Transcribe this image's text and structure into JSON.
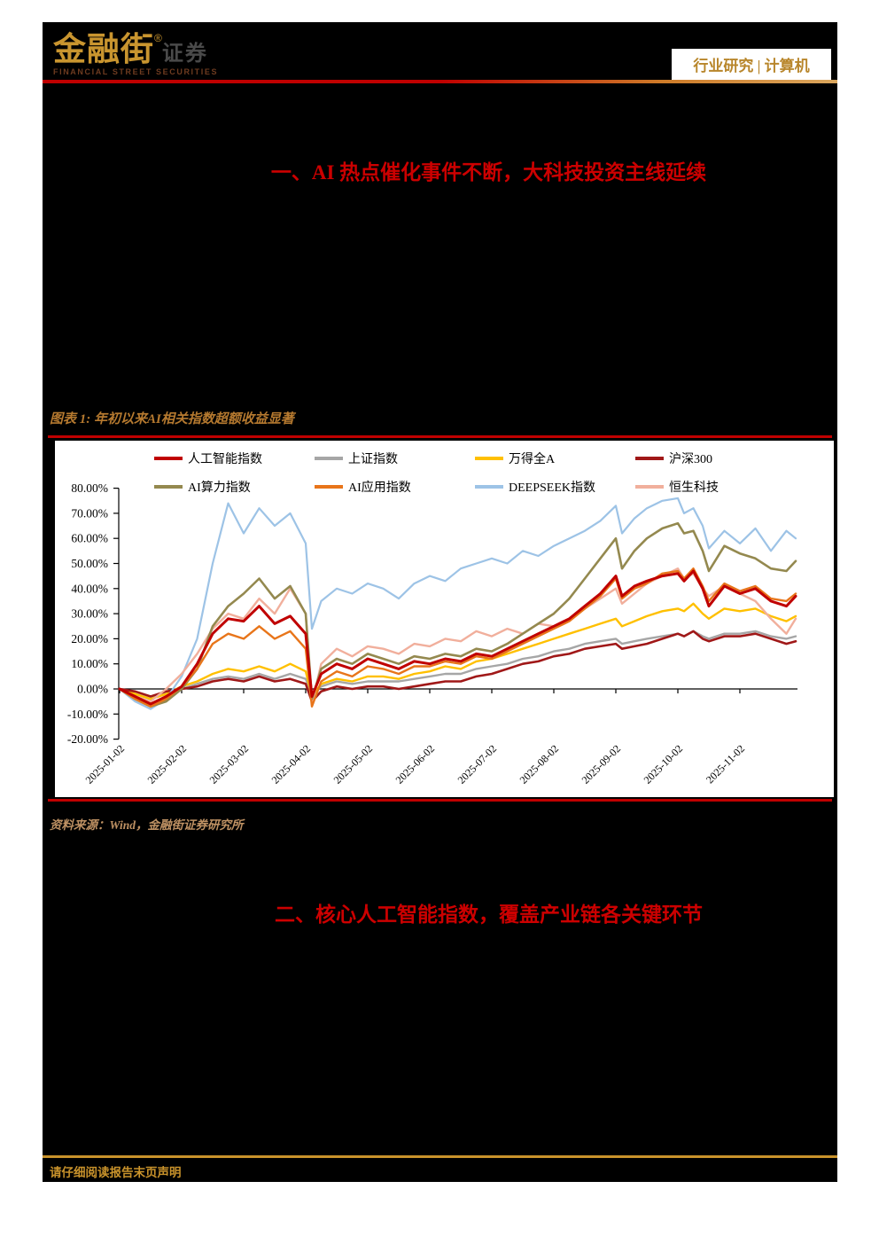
{
  "header": {
    "brand": "金融街",
    "brand_reg_mark": "®",
    "brand_suffix": "证券",
    "brand_subtitle": "FINANCIAL STREET SECURITIES",
    "report_tag": "行业研究 | 计算机"
  },
  "sections": {
    "one": "一、AI 热点催化事件不断，大科技投资主线延续",
    "two": "二、核心人工智能指数，覆盖产业链各关键环节"
  },
  "figure": {
    "label": "图表 1: 年初以来AI相关指数超额收益显著",
    "source": "资料来源：Wind，金融街证券研究所"
  },
  "footer": {
    "disclaimer": "请仔细阅读报告末页声明"
  },
  "colors": {
    "page_background": "#000000",
    "accent_red": "#C00000",
    "gold_rule": "#C8922B",
    "figure_title_gold": "#B5792F",
    "source_gold": "#BE9163",
    "heading_red": "#CC0000",
    "report_tag_gold": "#B8862B"
  },
  "chart_data": {
    "type": "line",
    "title": "年初以来AI相关指数超额收益显著",
    "xlabel": "",
    "ylabel": "",
    "grid": false,
    "legend_position": "top",
    "ylim": [
      -20,
      80
    ],
    "y_tick_step": 10,
    "y_tick_format": "percent_2dp",
    "x_tick_labels": [
      "2025-01-02",
      "2025-02-02",
      "2025-03-02",
      "2025-04-02",
      "2025-05-02",
      "2025-06-02",
      "2025-07-02",
      "2025-08-02",
      "2025-09-02",
      "2025-10-02",
      "2025-11-02"
    ],
    "x_months": [
      0,
      0.25,
      0.5,
      0.75,
      1,
      1.25,
      1.5,
      1.75,
      2,
      2.25,
      2.5,
      2.75,
      3,
      3.1,
      3.25,
      3.5,
      3.75,
      4,
      4.25,
      4.5,
      4.75,
      5,
      5.25,
      5.5,
      5.75,
      6,
      6.25,
      6.5,
      6.75,
      7,
      7.25,
      7.5,
      7.75,
      8,
      8.1,
      8.3,
      8.5,
      8.75,
      9,
      9.1,
      9.25,
      9.4,
      9.5,
      9.75,
      10,
      10.25,
      10.5,
      10.75,
      10.9
    ],
    "unit": "percent_excess_return",
    "series": [
      {
        "name": "人工智能指数",
        "color": "#C00000",
        "width": 3,
        "values": [
          0,
          -3,
          -6,
          -3,
          1,
          10,
          22,
          28,
          27,
          33,
          26,
          29,
          22,
          -3,
          6,
          10,
          8,
          12,
          10,
          8,
          11,
          10,
          12,
          11,
          14,
          13,
          16,
          19,
          22,
          25,
          28,
          33,
          38,
          45,
          37,
          41,
          43,
          45,
          46,
          43,
          47,
          40,
          33,
          41,
          38,
          40,
          35,
          33,
          37
        ]
      },
      {
        "name": "上证指数",
        "color": "#A6A6A6",
        "width": 2.4,
        "values": [
          0,
          -2,
          -4,
          -2,
          0,
          2,
          4,
          5,
          4,
          6,
          4,
          6,
          4,
          -2,
          1,
          3,
          2,
          3,
          3,
          3,
          4,
          5,
          6,
          6,
          8,
          9,
          10,
          12,
          13,
          15,
          16,
          18,
          19,
          20,
          18,
          19,
          20,
          21,
          22,
          21,
          23,
          21,
          20,
          22,
          22,
          23,
          21,
          20,
          21
        ]
      },
      {
        "name": "万得全A",
        "color": "#FFC000",
        "width": 2.4,
        "values": [
          0,
          -2,
          -4,
          -2,
          1,
          3,
          6,
          8,
          7,
          9,
          7,
          10,
          7,
          -3,
          2,
          4,
          3,
          5,
          5,
          4,
          6,
          7,
          9,
          8,
          11,
          12,
          14,
          16,
          18,
          20,
          22,
          24,
          26,
          28,
          25,
          27,
          29,
          31,
          32,
          31,
          34,
          30,
          28,
          32,
          31,
          32,
          29,
          27,
          29
        ]
      },
      {
        "name": "沪深300",
        "color": "#A01818",
        "width": 2.6,
        "values": [
          0,
          -1,
          -3,
          -1,
          0,
          1,
          3,
          4,
          3,
          5,
          3,
          4,
          2,
          -5,
          -1,
          1,
          0,
          1,
          1,
          0,
          1,
          2,
          3,
          3,
          5,
          6,
          8,
          10,
          11,
          13,
          14,
          16,
          17,
          18,
          16,
          17,
          18,
          20,
          22,
          21,
          23,
          20,
          19,
          21,
          21,
          22,
          20,
          18,
          19
        ]
      },
      {
        "name": "AI算力指数",
        "color": "#94894F",
        "width": 2.6,
        "values": [
          0,
          -4,
          -7,
          -5,
          0,
          8,
          25,
          33,
          38,
          44,
          36,
          41,
          30,
          -4,
          8,
          12,
          10,
          14,
          12,
          10,
          13,
          12,
          14,
          13,
          16,
          15,
          18,
          22,
          26,
          30,
          36,
          44,
          52,
          60,
          48,
          55,
          60,
          64,
          66,
          62,
          63,
          55,
          47,
          57,
          54,
          52,
          48,
          47,
          51
        ]
      },
      {
        "name": "AI应用指数",
        "color": "#E8751A",
        "width": 2.4,
        "values": [
          0,
          -4,
          -7,
          -4,
          1,
          8,
          18,
          22,
          20,
          25,
          20,
          23,
          16,
          -7,
          3,
          7,
          5,
          9,
          8,
          6,
          9,
          9,
          11,
          10,
          13,
          12,
          15,
          18,
          21,
          24,
          27,
          32,
          37,
          44,
          36,
          40,
          42,
          46,
          47,
          44,
          48,
          41,
          35,
          42,
          39,
          41,
          36,
          35,
          38
        ]
      },
      {
        "name": "DEEPSEEK指数",
        "color": "#9DC3E6",
        "width": 2.2,
        "values": [
          0,
          -5,
          -8,
          -4,
          5,
          20,
          50,
          74,
          62,
          72,
          65,
          70,
          58,
          24,
          35,
          40,
          38,
          42,
          40,
          36,
          42,
          45,
          43,
          48,
          50,
          52,
          50,
          55,
          53,
          57,
          60,
          63,
          67,
          73,
          62,
          68,
          72,
          75,
          76,
          70,
          72,
          65,
          56,
          63,
          58,
          64,
          55,
          63,
          60
        ]
      },
      {
        "name": "恒生科技",
        "color": "#F1AF9C",
        "width": 2.4,
        "values": [
          0,
          -3,
          -5,
          0,
          6,
          14,
          24,
          30,
          28,
          36,
          30,
          40,
          30,
          -6,
          10,
          16,
          13,
          17,
          16,
          14,
          18,
          17,
          20,
          19,
          23,
          21,
          24,
          22,
          26,
          25,
          28,
          32,
          36,
          40,
          34,
          38,
          42,
          45,
          48,
          44,
          46,
          40,
          37,
          41,
          38,
          35,
          28,
          22,
          28
        ]
      }
    ],
    "draw_order": [
      "上证指数",
      "万得全A",
      "沪深300",
      "DEEPSEEK指数",
      "恒生科技",
      "AI算力指数",
      "AI应用指数",
      "人工智能指数"
    ]
  }
}
